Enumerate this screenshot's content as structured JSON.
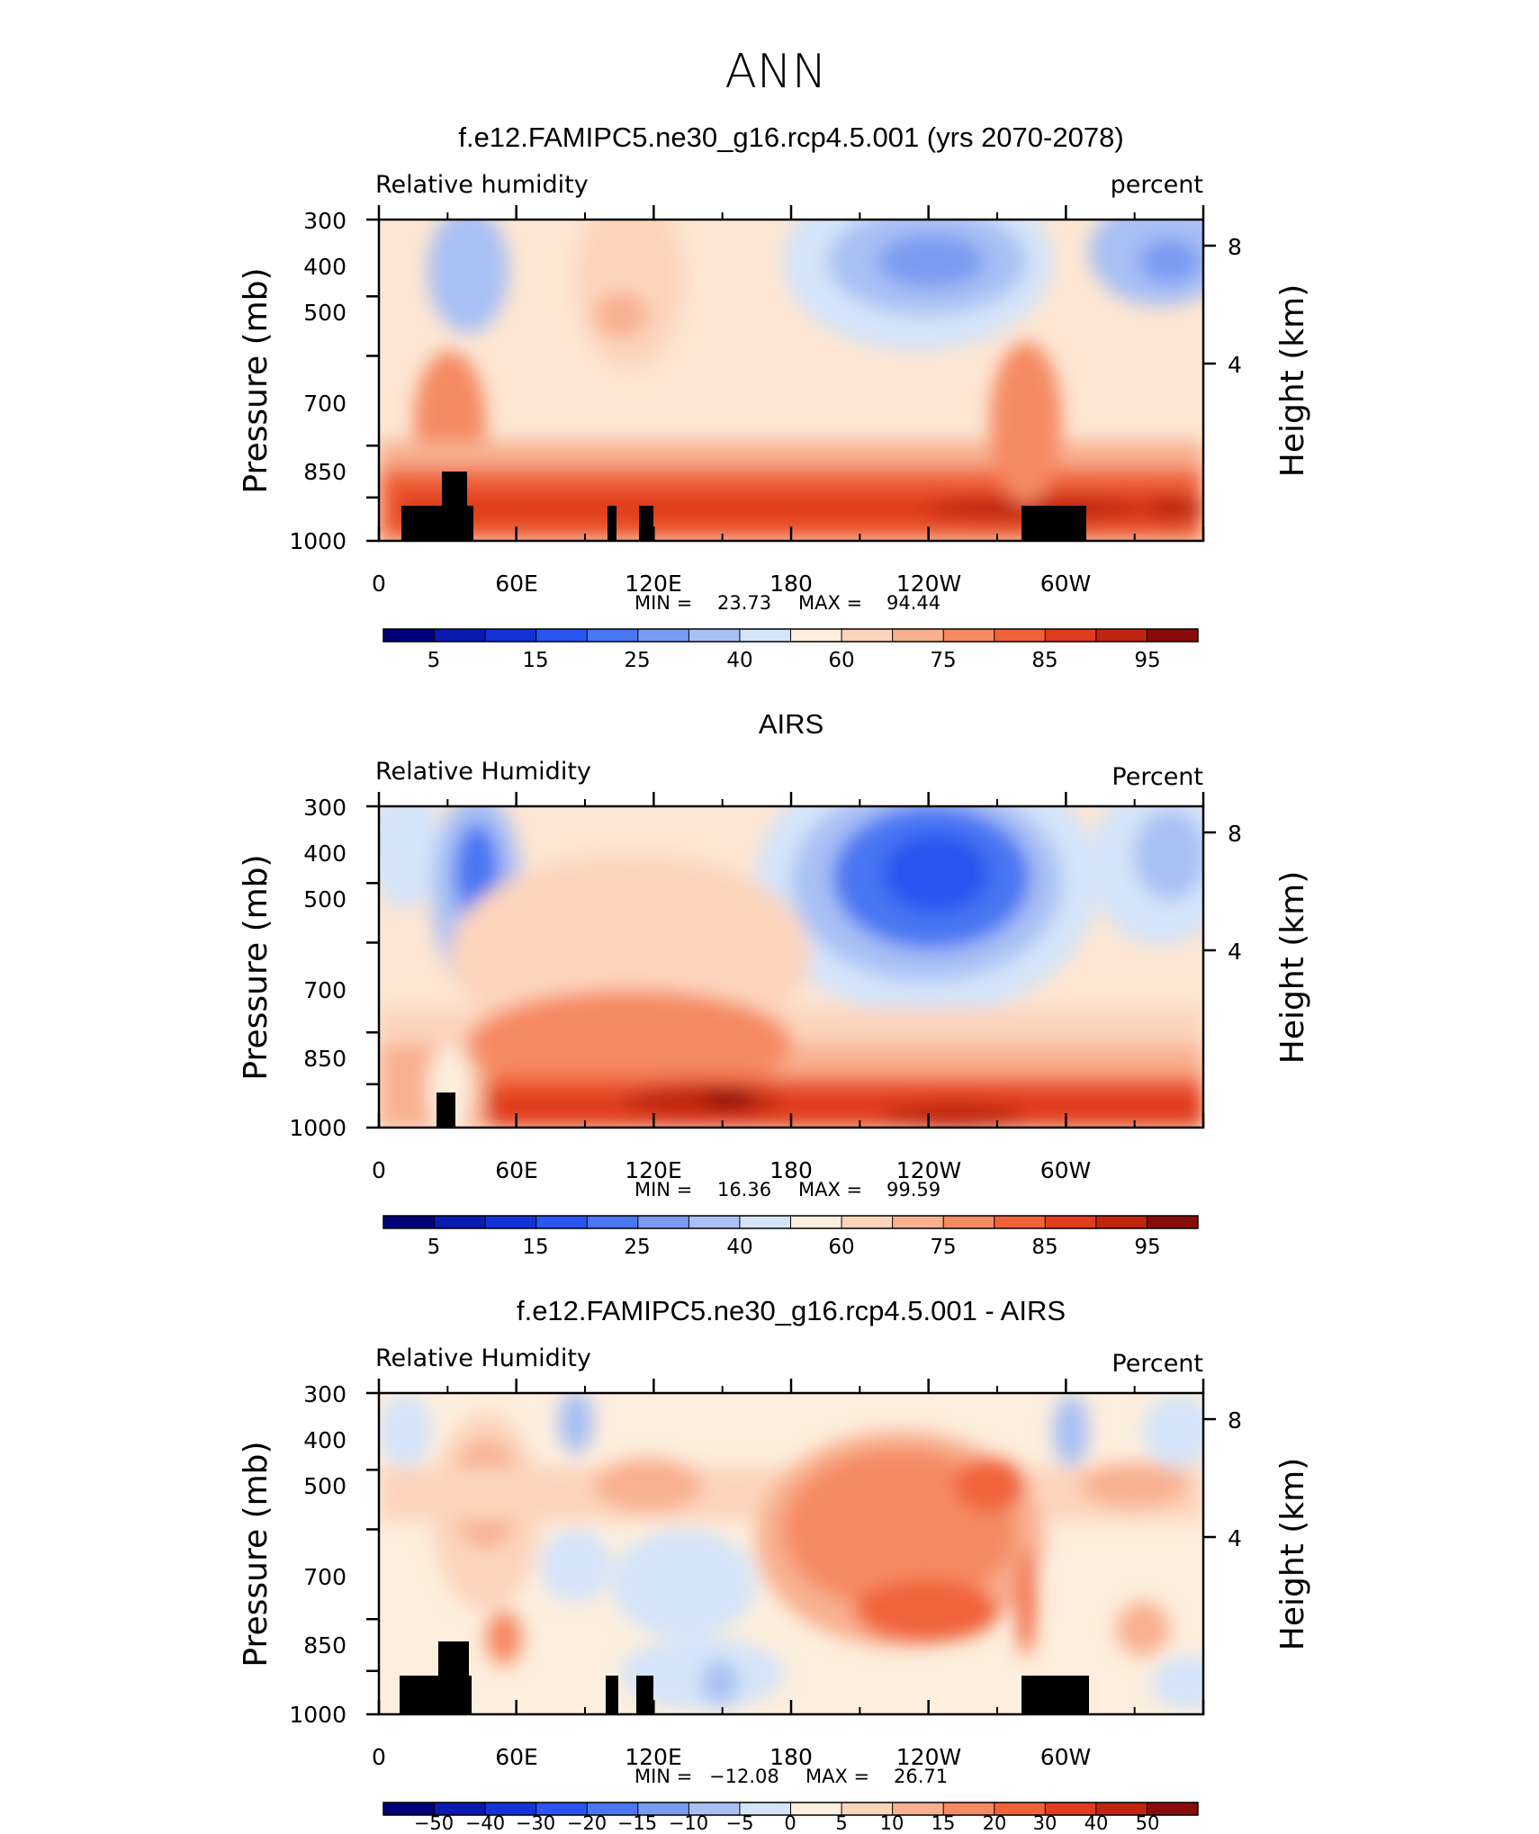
{
  "figure_title": "ANN",
  "chart_data": [
    {
      "type": "heatmap",
      "title": "f.e12.FAMIPC5.ne30_g16.rcp4.5.001 (yrs 2070-2078)",
      "left_label": "Relative humidity",
      "right_label": "percent",
      "xlabel": "",
      "ylabel": "Pressure (mb)",
      "y2label": "Height (km)",
      "x_ticks": [
        "0",
        "60E",
        "120E",
        "180",
        "120W",
        "60W"
      ],
      "y_ticks": [
        "300",
        "400",
        "500",
        "700",
        "850",
        "1000"
      ],
      "y2_ticks": [
        "8",
        "4"
      ],
      "stats": {
        "min_label": "MIN =",
        "min": "23.73",
        "max_label": "MAX =",
        "max": "94.44"
      },
      "colorbar_labels": [
        "5",
        "15",
        "25",
        "40",
        "60",
        "75",
        "85",
        "95"
      ],
      "xlim": [
        0,
        360
      ],
      "ylim": [
        1000,
        300
      ]
    },
    {
      "type": "heatmap",
      "title": "AIRS",
      "left_label": "Relative Humidity",
      "right_label": "Percent",
      "xlabel": "",
      "ylabel": "Pressure (mb)",
      "y2label": "Height (km)",
      "x_ticks": [
        "0",
        "60E",
        "120E",
        "180",
        "120W",
        "60W"
      ],
      "y_ticks": [
        "300",
        "400",
        "500",
        "700",
        "850",
        "1000"
      ],
      "y2_ticks": [
        "8",
        "4"
      ],
      "stats": {
        "min_label": "MIN =",
        "min": "16.36",
        "max_label": "MAX =",
        "max": "99.59"
      },
      "colorbar_labels": [
        "5",
        "15",
        "25",
        "40",
        "60",
        "75",
        "85",
        "95"
      ],
      "xlim": [
        0,
        360
      ],
      "ylim": [
        1000,
        300
      ]
    },
    {
      "type": "heatmap",
      "title": "f.e12.FAMIPC5.ne30_g16.rcp4.5.001 - AIRS",
      "left_label": "Relative Humidity",
      "right_label": "Percent",
      "xlabel": "",
      "ylabel": "Pressure (mb)",
      "y2label": "Height (km)",
      "x_ticks": [
        "0",
        "60E",
        "120E",
        "180",
        "120W",
        "60W"
      ],
      "y_ticks": [
        "300",
        "400",
        "500",
        "700",
        "850",
        "1000"
      ],
      "y2_ticks": [
        "8",
        "4"
      ],
      "stats": {
        "min_label": "MIN =",
        "min": "−12.08",
        "max_label": "MAX =",
        "max": "26.71"
      },
      "colorbar_labels": [
        "−50",
        "−40",
        "−30",
        "−20",
        "−15",
        "−10",
        "−5",
        "0",
        "5",
        "10",
        "15",
        "20",
        "30",
        "40",
        "50"
      ],
      "xlim": [
        0,
        360
      ],
      "ylim": [
        1000,
        300
      ]
    }
  ],
  "colorbar_colors": [
    "#00007a",
    "#0a1bb0",
    "#1433d6",
    "#2a55f0",
    "#4a76f2",
    "#7a9bf2",
    "#a9c0f4",
    "#d4e4f9",
    "#fdeedd",
    "#fcd4bb",
    "#f8b090",
    "#f58a62",
    "#f0633a",
    "#e03d1f",
    "#c02510",
    "#8a0c0a"
  ],
  "mask_color": "#000000"
}
